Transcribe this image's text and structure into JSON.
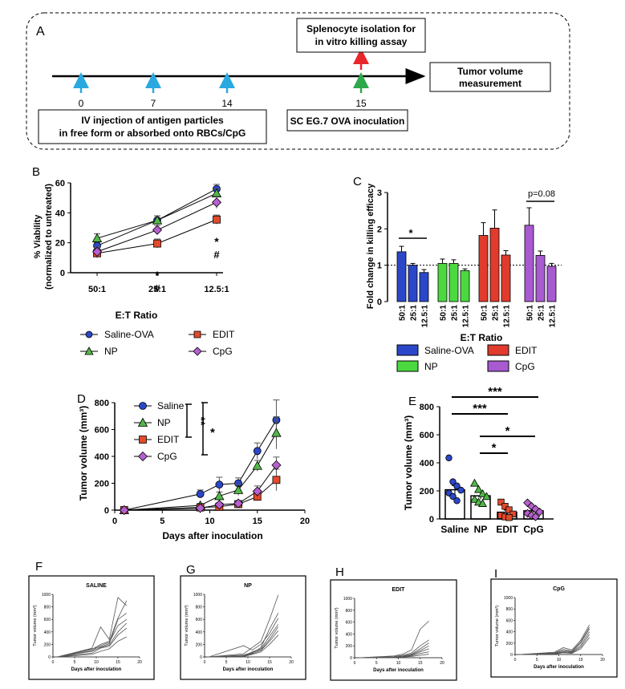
{
  "panelA": {
    "letter": "A",
    "top_box": [
      "Splenocyte isolation for",
      "in vitro killing assay"
    ],
    "right_box": [
      "Tumor volume",
      "measurement"
    ],
    "left_box": [
      "IV injection of antigen particles",
      "in free form or absorbed onto RBCs/CpG"
    ],
    "bottom_box": "SC EG.7 OVA inoculation",
    "days": [
      "0",
      "7",
      "14",
      "15"
    ],
    "colors": {
      "cyan": "#29a9e0",
      "red": "#e8262b",
      "green": "#2ea84a"
    }
  },
  "colors": {
    "saline": "#2b47c9",
    "np": "#52b848",
    "edit": "#e24a2b",
    "cpg": "#b65fcf",
    "np_bar": "#4bd93f",
    "edit_bar": "#e03b2c",
    "cpg_bar": "#a85ad0"
  },
  "chart_data": [
    {
      "panel": "B",
      "type": "line",
      "ylabel": "% Viability (normalized to untreated)",
      "xlabel": "E:T Ratio",
      "categories": [
        "50:1",
        "25:1",
        "12.5:1"
      ],
      "ylim": [
        0,
        60
      ],
      "yticks": [
        "0",
        "20",
        "40",
        "60"
      ],
      "series": [
        {
          "name": "Saline-OVA",
          "values": [
            18,
            35,
            56
          ],
          "err": [
            2,
            3,
            3
          ]
        },
        {
          "name": "NP",
          "values": [
            23,
            35,
            53
          ],
          "err": [
            3,
            3,
            3
          ]
        },
        {
          "name": "EDIT",
          "values": [
            13,
            19.5,
            35.5
          ],
          "err": [
            3,
            3,
            3
          ]
        },
        {
          "name": "CpG",
          "values": [
            14,
            28.5,
            47
          ],
          "err": [
            3,
            3,
            4
          ]
        }
      ],
      "annotations": {
        "p25": [
          "*",
          "#"
        ],
        "p12": [
          "*",
          "#"
        ]
      },
      "legend": [
        "Saline-OVA",
        "EDIT",
        "NP",
        "CpG"
      ]
    },
    {
      "panel": "C",
      "type": "bar",
      "ylabel": "Fold change in killing efficacy",
      "xlabel": "E:T Ratio",
      "ylim": [
        0,
        3
      ],
      "yticks": [
        "0",
        "1",
        "2",
        "3"
      ],
      "categories": [
        "50:1",
        "25:1",
        "12.5:1"
      ],
      "series": [
        {
          "name": "Saline-OVA",
          "values": [
            1.37,
            1.0,
            0.8
          ],
          "err": [
            0.15,
            0.05,
            0.08
          ]
        },
        {
          "name": "NP",
          "values": [
            1.05,
            1.05,
            0.85
          ],
          "err": [
            0.12,
            0.1,
            0.05
          ]
        },
        {
          "name": "EDIT",
          "values": [
            1.82,
            2.02,
            1.28
          ],
          "err": [
            0.35,
            0.5,
            0.12
          ]
        },
        {
          "name": "CpG",
          "values": [
            2.1,
            1.27,
            0.97
          ],
          "err": [
            0.48,
            0.12,
            0.08
          ]
        }
      ],
      "annotations": {
        "star": "*",
        "p": "p=0.08"
      },
      "legend": [
        "Saline-OVA",
        "EDIT",
        "NP",
        "CpG"
      ]
    },
    {
      "panel": "D",
      "type": "line",
      "ylabel": "Tumor volume (mm³)",
      "xlabel": "Days after inoculation",
      "ylim": [
        0,
        800
      ],
      "xlim": [
        0,
        20
      ],
      "yticks": [
        "0",
        "200",
        "400",
        "600",
        "800"
      ],
      "xticks": [
        "0",
        "5",
        "10",
        "15",
        "20"
      ],
      "x": [
        1,
        9,
        11,
        13,
        15,
        17
      ],
      "series": [
        {
          "name": "Saline",
          "values": [
            0,
            120,
            190,
            200,
            440,
            670
          ],
          "err": [
            0,
            30,
            55,
            40,
            60,
            150
          ]
        },
        {
          "name": "NP",
          "values": [
            0,
            35,
            105,
            150,
            330,
            575
          ],
          "err": [
            0,
            15,
            30,
            40,
            40,
            120
          ]
        },
        {
          "name": "EDIT",
          "values": [
            0,
            20,
            25,
            45,
            100,
            225
          ],
          "err": [
            0,
            10,
            10,
            15,
            30,
            80
          ]
        },
        {
          "name": "CpG",
          "values": [
            0,
            15,
            40,
            50,
            140,
            335
          ],
          "err": [
            0,
            10,
            15,
            20,
            40,
            60
          ]
        }
      ],
      "annotations": {
        "double": "**",
        "single": "*"
      }
    },
    {
      "panel": "E",
      "type": "bar",
      "ylabel": "Tumor volume (mm³)",
      "ylim": [
        0,
        800
      ],
      "yticks": [
        "0",
        "200",
        "400",
        "600",
        "800"
      ],
      "categories": [
        "Saline",
        "NP",
        "EDIT",
        "CpG"
      ],
      "values": [
        208,
        165,
        48,
        58
      ],
      "err": [
        30,
        25,
        15,
        12
      ],
      "points": [
        [
          435,
          265,
          235,
          205,
          185,
          160,
          130
        ],
        [
          255,
          210,
          180,
          160,
          140,
          120,
          110
        ],
        [
          120,
          90,
          65,
          35,
          25,
          15,
          10
        ],
        [
          115,
          90,
          70,
          50,
          40,
          25,
          15
        ]
      ],
      "annotations": [
        "***",
        "***",
        "*",
        "*"
      ]
    },
    {
      "panel": "F",
      "type": "line",
      "title": "SALINE",
      "ylabel": "Tumor volume (mm³)",
      "xlabel": "Days after inoculation",
      "yticks": [
        "0",
        "200",
        "400",
        "600",
        "800",
        "1000"
      ],
      "xticks": [
        "0",
        "5",
        "10",
        "15",
        "20"
      ],
      "ylim": [
        0,
        1000
      ],
      "xlim": [
        0,
        20
      ],
      "x": [
        1,
        9,
        11,
        13,
        15,
        17
      ],
      "series": [
        {
          "values": [
            0,
            140,
            480,
            280,
            950,
            820
          ]
        },
        {
          "values": [
            0,
            120,
            200,
            250,
            620,
            900
          ]
        },
        {
          "values": [
            0,
            130,
            160,
            210,
            600,
            700
          ]
        },
        {
          "values": [
            0,
            100,
            180,
            230,
            500,
            600
          ]
        },
        {
          "values": [
            0,
            90,
            150,
            190,
            400,
            540
          ]
        },
        {
          "values": [
            0,
            60,
            140,
            170,
            350,
            460
          ]
        },
        {
          "values": [
            0,
            40,
            90,
            130,
            250,
            320
          ]
        }
      ]
    },
    {
      "panel": "G",
      "type": "line",
      "title": "NP",
      "ylabel": "Tumor volume (mm³)",
      "xlabel": "Days after inoculation",
      "yticks": [
        "0",
        "200",
        "400",
        "600",
        "800",
        "1000"
      ],
      "xticks": [
        "0",
        "5",
        "10",
        "15",
        "20"
      ],
      "ylim": [
        0,
        1000
      ],
      "xlim": [
        0,
        20
      ],
      "x": [
        1,
        9,
        11,
        13,
        15,
        17
      ],
      "series": [
        {
          "values": [
            0,
            50,
            150,
            250,
            600,
            990
          ]
        },
        {
          "values": [
            0,
            20,
            60,
            150,
            450,
            700
          ]
        },
        {
          "values": [
            0,
            180,
            110,
            200,
            380,
            620
          ]
        },
        {
          "values": [
            0,
            10,
            80,
            130,
            330,
            520
          ]
        },
        {
          "values": [
            0,
            30,
            70,
            110,
            280,
            480
          ]
        },
        {
          "values": [
            0,
            15,
            50,
            100,
            250,
            420
          ]
        },
        {
          "values": [
            0,
            5,
            40,
            80,
            200,
            350
          ]
        }
      ]
    },
    {
      "panel": "H",
      "type": "line",
      "title": "EDIT",
      "ylabel": "Tumor volume (mm³)",
      "xlabel": "Days after inoculation",
      "yticks": [
        "0",
        "200",
        "400",
        "600",
        "800",
        "1000"
      ],
      "xticks": [
        "0",
        "5",
        "10",
        "15",
        "20"
      ],
      "ylim": [
        0,
        1000
      ],
      "xlim": [
        0,
        20
      ],
      "x": [
        1,
        9,
        11,
        13,
        15,
        17
      ],
      "series": [
        {
          "values": [
            0,
            30,
            60,
            130,
            480,
            620
          ]
        },
        {
          "values": [
            0,
            20,
            40,
            80,
            200,
            300
          ]
        },
        {
          "values": [
            0,
            10,
            30,
            60,
            150,
            250
          ]
        },
        {
          "values": [
            0,
            10,
            20,
            50,
            120,
            200
          ]
        },
        {
          "values": [
            0,
            5,
            15,
            40,
            100,
            150
          ]
        },
        {
          "values": [
            0,
            5,
            10,
            30,
            70,
            100
          ]
        },
        {
          "values": [
            0,
            2,
            10,
            20,
            40,
            60
          ]
        }
      ]
    },
    {
      "panel": "I",
      "type": "line",
      "title": "CpG",
      "ylabel": "Tumor volume (mm³)",
      "xlabel": "Days after inoculation",
      "yticks": [
        "0",
        "200",
        "400",
        "600",
        "800",
        "1000"
      ],
      "xticks": [
        "0",
        "5",
        "10",
        "15",
        "20"
      ],
      "ylim": [
        0,
        1000
      ],
      "xlim": [
        0,
        20
      ],
      "x": [
        1,
        9,
        11,
        13,
        15,
        17
      ],
      "series": [
        {
          "values": [
            0,
            40,
            120,
            80,
            250,
            520
          ]
        },
        {
          "values": [
            0,
            30,
            90,
            60,
            220,
            480
          ]
        },
        {
          "values": [
            0,
            20,
            70,
            50,
            200,
            450
          ]
        },
        {
          "values": [
            0,
            15,
            50,
            40,
            160,
            400
          ]
        },
        {
          "values": [
            0,
            10,
            40,
            30,
            130,
            350
          ]
        },
        {
          "values": [
            0,
            5,
            30,
            20,
            100,
            300
          ]
        }
      ]
    }
  ]
}
